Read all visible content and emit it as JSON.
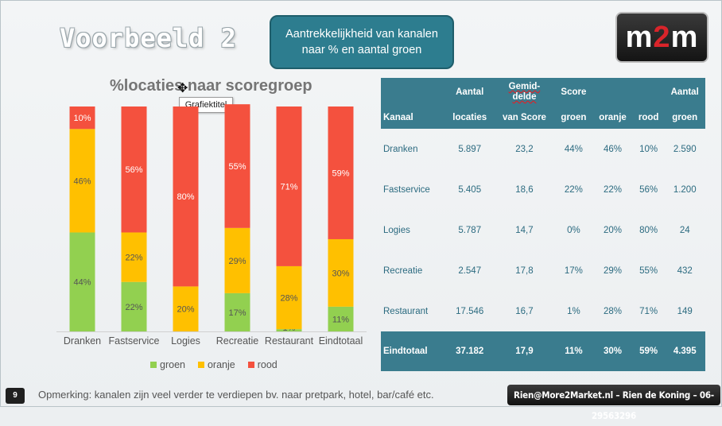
{
  "slide": {
    "title": "Voorbeeld 2",
    "callout_line1": "Aantrekkelijkheid van kanalen",
    "callout_line2": "naar % en aantal groen",
    "logo_part1": "m",
    "logo_part2": "2",
    "logo_part3": "m",
    "page_number": "9",
    "footnote": "Opmerking: kanalen zijn veel verder te verdiepen bv. naar pretpark, hotel, bar/café etc.",
    "contact": "Rien@More2Market.nl – Rien de Koning – 06-29563296"
  },
  "chart": {
    "title": "%locaties naar scoregroep",
    "tooltip": "Grafiektitel"
  },
  "chart_data": {
    "type": "bar",
    "stacked": true,
    "title": "%locaties naar scoregroep",
    "categories": [
      "Dranken",
      "Fastservice",
      "Logies",
      "Recreatie",
      "Restaurant",
      "Eindtotaal"
    ],
    "series": [
      {
        "name": "groen",
        "color": "#92d050",
        "values": [
          44,
          22,
          0,
          17,
          1,
          11
        ]
      },
      {
        "name": "oranje",
        "color": "#ffc000",
        "values": [
          46,
          22,
          20,
          29,
          28,
          30
        ]
      },
      {
        "name": "rood",
        "color": "#f4513e",
        "values": [
          10,
          56,
          80,
          55,
          71,
          59
        ]
      }
    ],
    "ylim": [
      0,
      100
    ],
    "grid": false,
    "legend": "bottom"
  },
  "table": {
    "headers_top": [
      "",
      "Aantal",
      "Gemid-\ndelde",
      "Score",
      "",
      "",
      "Aantal"
    ],
    "headers_bottom": [
      "Kanaal",
      "locaties",
      "van Score",
      "groen",
      "oranje",
      "rood",
      "groen"
    ],
    "rows": [
      [
        "Dranken",
        "5.897",
        "23,2",
        "44%",
        "46%",
        "10%",
        "2.590"
      ],
      [
        "Fastservice",
        "5.405",
        "18,6",
        "22%",
        "22%",
        "56%",
        "1.200"
      ],
      [
        "Logies",
        "5.787",
        "14,7",
        "0%",
        "20%",
        "80%",
        "24"
      ],
      [
        "Recreatie",
        "2.547",
        "17,8",
        "17%",
        "29%",
        "55%",
        "432"
      ],
      [
        "Restaurant",
        "17.546",
        "16,7",
        "1%",
        "28%",
        "71%",
        "149"
      ]
    ],
    "total": [
      "Eindtotaal",
      "37.182",
      "17,9",
      "11%",
      "30%",
      "59%",
      "4.395"
    ]
  },
  "colors": {
    "accent": "#3a7c8e",
    "groen": "#92d050",
    "oranje": "#ffc000",
    "rood": "#f4513e"
  }
}
